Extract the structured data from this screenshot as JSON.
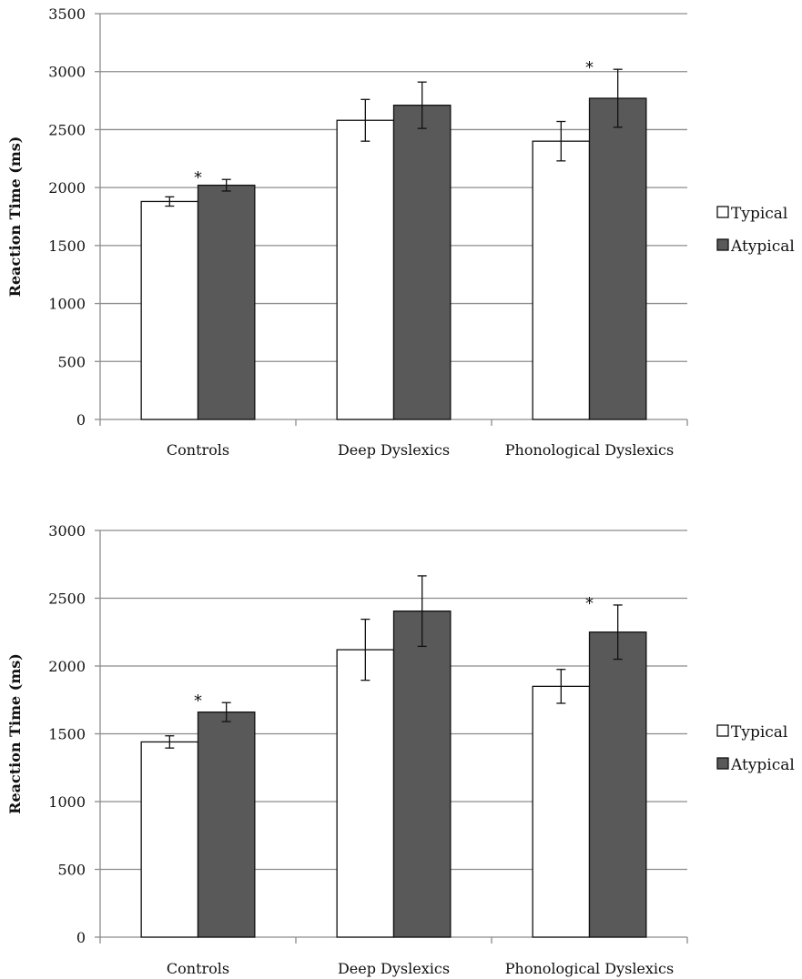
{
  "chart_data": [
    {
      "type": "bar",
      "categories": [
        "Controls",
        "Deep Dyslexics",
        "Phonological Dyslexics"
      ],
      "series": [
        {
          "name": "Typical",
          "values": [
            1880,
            2580,
            2400
          ],
          "errors": [
            40,
            180,
            170
          ],
          "color": "#ffffff"
        },
        {
          "name": "Atypical",
          "values": [
            2020,
            2710,
            2770
          ],
          "errors": [
            50,
            200,
            250
          ],
          "color": "#595959"
        }
      ],
      "significance": [
        "*",
        "",
        "*"
      ],
      "ylabel": "Reaction Time (ms)",
      "ylim": [
        0,
        3500
      ],
      "yticks": [
        0,
        500,
        1000,
        1500,
        2000,
        2500,
        3000,
        3500
      ],
      "grid": true,
      "legend": "right"
    },
    {
      "type": "bar",
      "categories": [
        "Controls",
        "Deep Dyslexics",
        "Phonological Dyslexics"
      ],
      "series": [
        {
          "name": "Typical",
          "values": [
            1440,
            2120,
            1850
          ],
          "errors": [
            45,
            225,
            125
          ],
          "color": "#ffffff"
        },
        {
          "name": "Atypical",
          "values": [
            1660,
            2405,
            2250
          ],
          "errors": [
            70,
            260,
            200
          ],
          "color": "#595959"
        }
      ],
      "significance": [
        "*",
        "",
        "*"
      ],
      "ylabel": "Reaction Time (ms)",
      "ylim": [
        0,
        3000
      ],
      "yticks": [
        0,
        500,
        1000,
        1500,
        2000,
        2500,
        3000
      ],
      "grid": true,
      "legend": "right"
    }
  ]
}
